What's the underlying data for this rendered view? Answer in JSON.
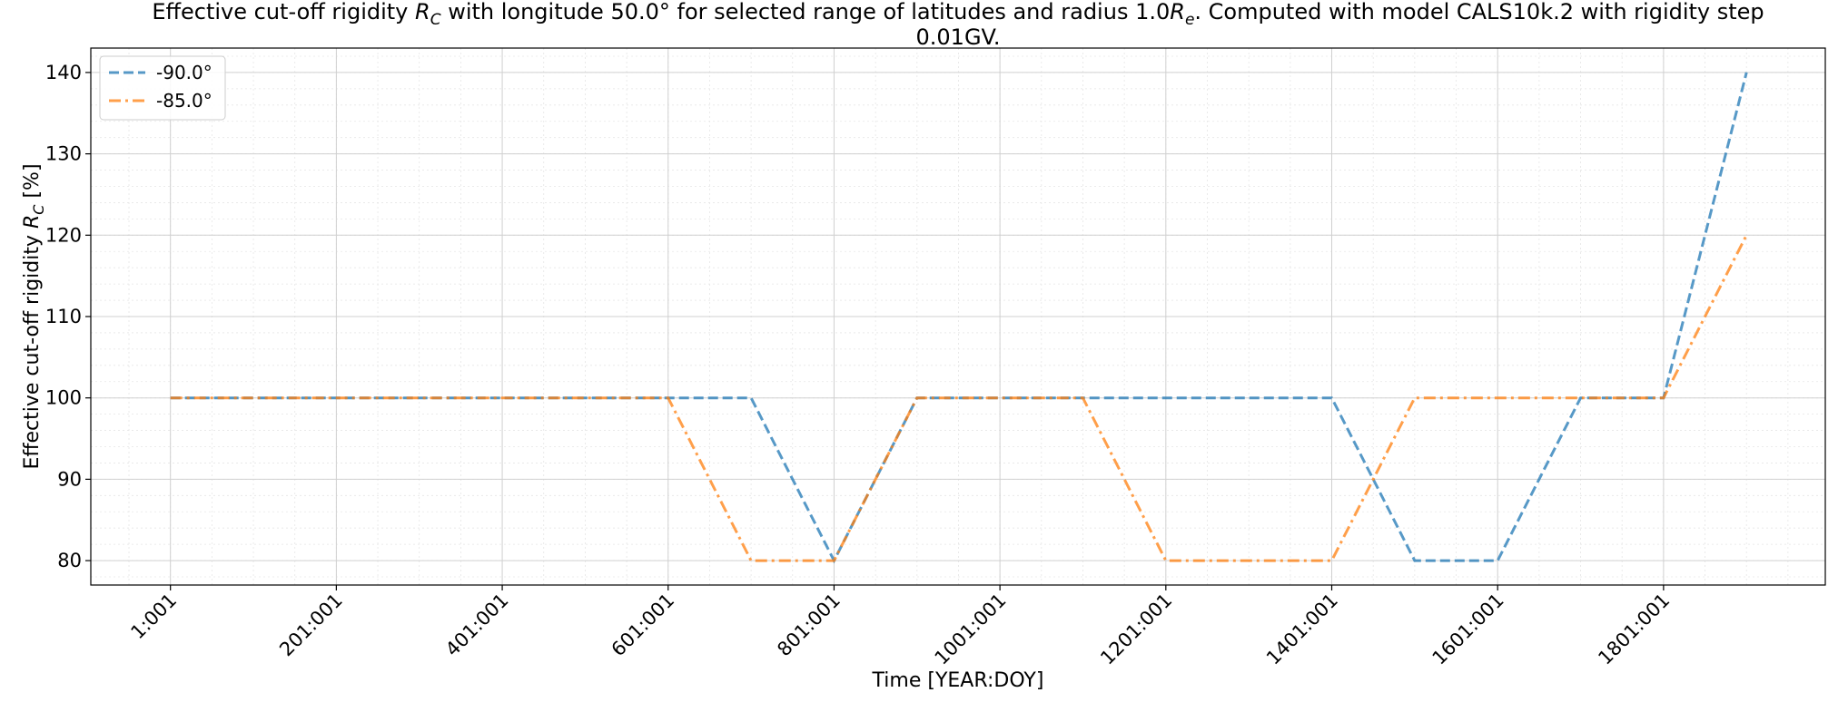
{
  "chart_data": {
    "type": "line",
    "title_line1_pre": "Effective cut-off rigidity ",
    "title_symbol_main": "R",
    "title_symbol_sub": "C",
    "title_line1_mid": " with longitude 50.0° for selected range of latitudes and radius 1.0",
    "title_radius_main": "R",
    "title_radius_sub": "e",
    "title_line1_post": ". Computed with model CALS10k.2 with rigidity step",
    "title_line2": "0.01GV.",
    "xlabel": "Time [YEAR:DOY]",
    "ylabel_pre": "Effective cut-off rigidity ",
    "ylabel_symbol_main": "R",
    "ylabel_symbol_sub": "C",
    "ylabel_post": " [%]",
    "x_ticks": [
      1,
      201,
      401,
      601,
      801,
      1001,
      1201,
      1401,
      1601,
      1801
    ],
    "x_tick_labels": [
      "1:001",
      "201:001",
      "401:001",
      "601:001",
      "801:001",
      "1001:001",
      "1201:001",
      "1401:001",
      "1601:001",
      "1801:001"
    ],
    "y_ticks": [
      80,
      90,
      100,
      110,
      120,
      130,
      140
    ],
    "y_tick_labels": [
      "80",
      "90",
      "100",
      "110",
      "120",
      "130",
      "140"
    ],
    "xlim": [
      -95,
      1996
    ],
    "ylim": [
      77,
      143
    ],
    "grid": true,
    "minor_grid": true,
    "legend_position": "top-left",
    "x": [
      1,
      101,
      201,
      301,
      401,
      501,
      601,
      701,
      801,
      901,
      1001,
      1101,
      1201,
      1301,
      1401,
      1501,
      1601,
      1701,
      1801,
      1901
    ],
    "series": [
      {
        "name": "-90.0°",
        "color": "#1f77b4",
        "style": "dashed",
        "values": [
          100,
          100,
          100,
          100,
          100,
          100,
          100,
          100,
          80,
          100,
          100,
          100,
          100,
          100,
          100,
          80,
          80,
          100,
          100,
          140
        ]
      },
      {
        "name": "-85.0°",
        "color": "#ff7f0e",
        "style": "dashdot",
        "values": [
          100,
          100,
          100,
          100,
          100,
          100,
          100,
          80,
          80,
          100,
          100,
          100,
          80,
          80,
          80,
          100,
          100,
          100,
          100,
          120
        ]
      }
    ]
  }
}
